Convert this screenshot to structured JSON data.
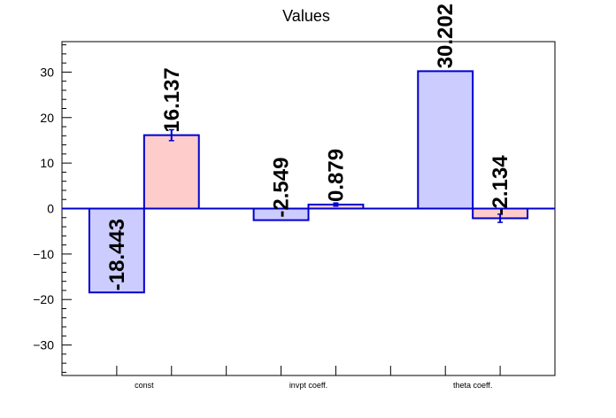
{
  "chart_data": {
    "type": "bar",
    "title": "Values",
    "xlabel": "",
    "ylabel": "",
    "ylim": [
      -36.7,
      36.7
    ],
    "yticks": [
      -30,
      -20,
      -10,
      0,
      10,
      20,
      30
    ],
    "grid": false,
    "categories": [
      "const",
      "invpt coeff.",
      "theta coeff."
    ],
    "series": [
      {
        "values": [
          -18.443,
          -2.549,
          30.202
        ],
        "labels": [
          "-18.443",
          "-2.549",
          "30.202"
        ],
        "errors": [
          0.0,
          0.0,
          0.0
        ],
        "fill": "#ccccff",
        "stroke": "#0000cc"
      },
      {
        "values": [
          16.137,
          0.879,
          -2.134
        ],
        "labels": [
          "16.137",
          "0.879",
          "-2.134"
        ],
        "errors": [
          1.2,
          0.35,
          0.9
        ],
        "fill": "#ffcccc",
        "stroke": "#0000cc"
      }
    ]
  }
}
